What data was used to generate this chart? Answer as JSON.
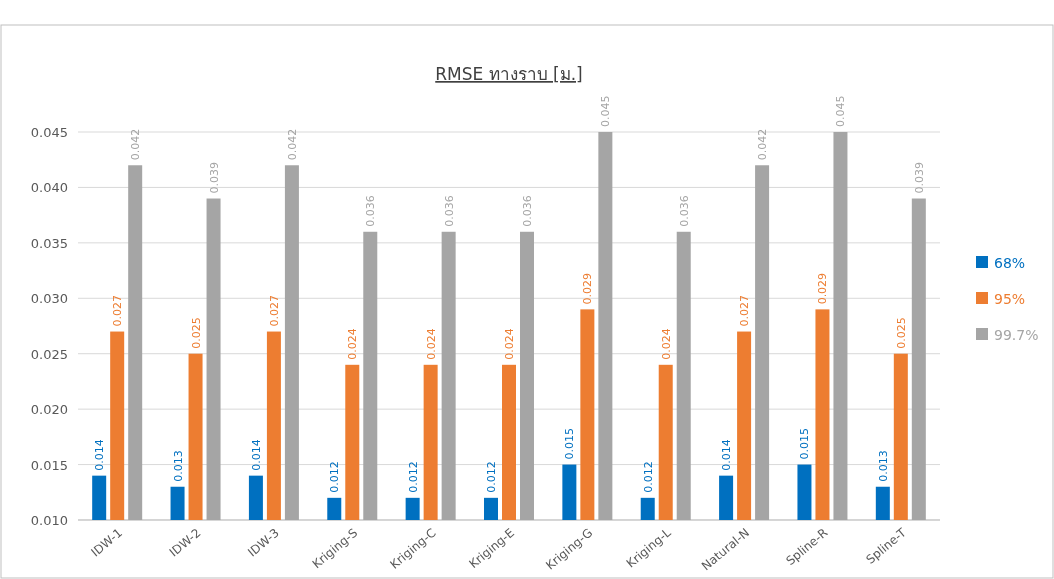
{
  "chart_data": {
    "type": "bar",
    "title": "RMSE ทางราบ [ม.]",
    "categories": [
      "IDW-1",
      "IDW-2",
      "IDW-3",
      "Kriging-S",
      "Kriging-C",
      "Kriging-E",
      "Kriging-G",
      "Kriging-L",
      "Natural-N",
      "Spline-R",
      "Spline-T"
    ],
    "series": [
      {
        "name": "68%",
        "color": "#0070c0",
        "values": [
          0.014,
          0.013,
          0.014,
          0.012,
          0.012,
          0.012,
          0.015,
          0.012,
          0.014,
          0.015,
          0.013
        ]
      },
      {
        "name": "95%",
        "color": "#ed7d31",
        "values": [
          0.027,
          0.025,
          0.027,
          0.024,
          0.024,
          0.024,
          0.029,
          0.024,
          0.027,
          0.029,
          0.025
        ]
      },
      {
        "name": "99.7%",
        "color": "#a5a5a5",
        "values": [
          0.042,
          0.039,
          0.042,
          0.036,
          0.036,
          0.036,
          0.045,
          0.036,
          0.042,
          0.045,
          0.039
        ]
      }
    ],
    "ylim": [
      0.01,
      0.045
    ],
    "yticks": [
      {
        "value": 0.01,
        "label": "0.010"
      },
      0.015,
      {
        "value": 0.02,
        "label": "0.020"
      },
      0.025,
      {
        "value": 0.03,
        "label": "0.030"
      },
      0.035,
      {
        "value": 0.04,
        "label": "0.040"
      },
      0.045
    ],
    "grid": "y",
    "legend": "right",
    "data_labels": true
  }
}
